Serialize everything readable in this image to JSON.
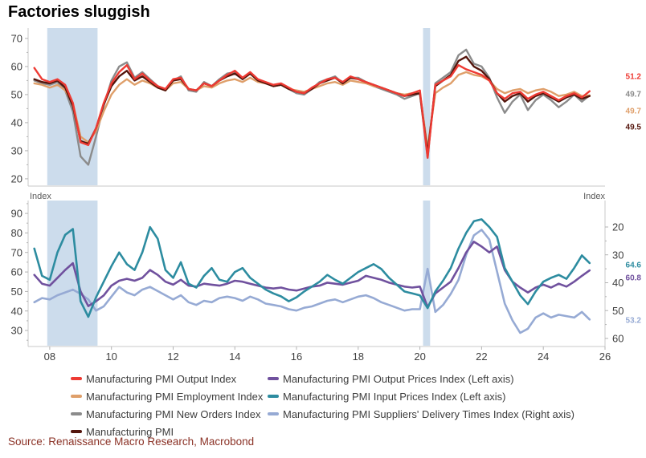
{
  "title": "Factories sluggish",
  "source": "Source: Renaissance Macro Research, Macrobond",
  "axis_unit_labels": {
    "left": "Index",
    "right": "Index"
  },
  "colors": {
    "output": "#ee3a33",
    "employment": "#df9f6a",
    "new_orders": "#8b8b8b",
    "pmi": "#54150c",
    "output_prices": "#70519e",
    "input_prices": "#2d8ca0",
    "delivery": "#96aad4",
    "recession_band": "#ccdcec",
    "axis_line": "#c9c9c9",
    "tick_mark": "#b3b3b3",
    "tick_text": "#3f3f3f",
    "legend_text": "#3d3d3d",
    "source_text": "#8b3226"
  },
  "legend": {
    "left_column": [
      {
        "label": "Manufacturing PMI Output Index",
        "color_key": "output"
      },
      {
        "label": "Manufacturing PMI Employment Index",
        "color_key": "employment"
      },
      {
        "label": "Manufacturing PMI New Orders Index",
        "color_key": "new_orders"
      },
      {
        "label": "Manufacturing PMI",
        "color_key": "pmi"
      }
    ],
    "right_column": [
      {
        "label": "Manufacturing PMI Output Prices Index (Left axis)",
        "color_key": "output_prices"
      },
      {
        "label": "Manufacturing PMI Input Prices Index (Left axis)",
        "color_key": "input_prices"
      },
      {
        "label": "Manufacturing PMI Suppliers' Delivery Times Index (Right axis)",
        "color_key": "delivery"
      }
    ]
  },
  "chart_data": [
    {
      "type": "line",
      "panel": "top",
      "x_start": 2007.5,
      "x_step": 0.25,
      "xlim": [
        2007.3,
        2026.0
      ],
      "x_tick_years": [
        2008,
        2010,
        2012,
        2014,
        2016,
        2018,
        2020,
        2022,
        2024,
        2026
      ],
      "x_tick_labels": [
        "08",
        "10",
        "12",
        "14",
        "16",
        "18",
        "20",
        "22",
        "24",
        "26"
      ],
      "show_x_labels": false,
      "ylim_left": [
        17.4,
        73.7
      ],
      "y_ticks_left": [
        20,
        30,
        40,
        50,
        60,
        70
      ],
      "recession_bands": [
        [
          2007.92,
          2009.55
        ],
        [
          2020.1,
          2020.33
        ]
      ],
      "series": [
        {
          "name": "Manufacturing PMI Output Index",
          "color_key": "output",
          "axis": "left",
          "end_label": "51.2",
          "values": [
            59.5,
            55.5,
            54.5,
            55.5,
            53.5,
            47,
            33,
            32,
            38,
            47,
            54,
            58,
            60.5,
            55.5,
            57.5,
            55,
            53,
            52,
            55.5,
            56,
            52,
            51.5,
            54,
            53,
            55,
            57,
            58.5,
            56,
            58,
            55.5,
            54.5,
            53.5,
            54,
            52.5,
            51,
            50.5,
            52.5,
            54,
            55.5,
            56,
            54.5,
            56.5,
            55.5,
            54.5,
            53.5,
            52.5,
            51.5,
            50.5,
            49.5,
            50.5,
            51.5,
            27.5,
            53.5,
            55,
            56.5,
            60.5,
            59,
            58,
            57,
            55,
            50.5,
            48.5,
            50.5,
            51,
            48.5,
            50,
            51,
            49.5,
            48,
            49.5,
            50.5,
            49,
            51.2
          ]
        },
        {
          "name": "Manufacturing PMI New Orders Index",
          "color_key": "new_orders",
          "axis": "left",
          "end_label": "49.7",
          "values": [
            55,
            54,
            53.5,
            54.5,
            51.5,
            44,
            28,
            25,
            35,
            46,
            55,
            60,
            61.5,
            56,
            58,
            55.5,
            53,
            51.5,
            55,
            56.5,
            51.5,
            51,
            54.5,
            53,
            55.5,
            57.5,
            58,
            55.5,
            57.5,
            55,
            54,
            53,
            53.5,
            52,
            50.5,
            50,
            52,
            54.5,
            55.5,
            56.5,
            54,
            56,
            56,
            54.5,
            53,
            52,
            51,
            50,
            48.5,
            49.5,
            50.5,
            27.5,
            54,
            56,
            58,
            64,
            66,
            61,
            60,
            56,
            49,
            43.5,
            47.5,
            50,
            44.5,
            48,
            50,
            48,
            45.5,
            47.5,
            50,
            47.5,
            49.7
          ]
        },
        {
          "name": "Manufacturing PMI Employment Index",
          "color_key": "employment",
          "axis": "left",
          "end_label": "49.7",
          "values": [
            54,
            53.5,
            52.5,
            53.5,
            51.5,
            47,
            35,
            33,
            37,
            44,
            50,
            53.5,
            55.5,
            53.5,
            55,
            54,
            52.5,
            51.5,
            54,
            54.5,
            52,
            51.5,
            53,
            52.5,
            54,
            55,
            55.5,
            54.5,
            56,
            54.5,
            54,
            53,
            53.5,
            52,
            51.5,
            51,
            52,
            53,
            54,
            54.5,
            53.5,
            55,
            54.5,
            54,
            53,
            52.5,
            51.5,
            50.5,
            50,
            50.5,
            50.5,
            31,
            50.5,
            52.5,
            54,
            57,
            58,
            57,
            56.5,
            55,
            52,
            50.5,
            51.5,
            52,
            50.5,
            51.5,
            52,
            51,
            49.5,
            50,
            51,
            49.5,
            49.7
          ]
        },
        {
          "name": "Manufacturing PMI",
          "color_key": "pmi",
          "axis": "left",
          "end_label": "49.5",
          "values": [
            55.5,
            54.5,
            54,
            55,
            52.5,
            46,
            33.5,
            32.5,
            38,
            46.5,
            53,
            56.5,
            58.5,
            55,
            56.5,
            54.5,
            52.5,
            51.5,
            55,
            55.5,
            52,
            51.5,
            54,
            53,
            55,
            56.5,
            57.5,
            55.5,
            57.5,
            55,
            54,
            53,
            53.5,
            52,
            51,
            50.5,
            52,
            54,
            55,
            56,
            54,
            56,
            55.5,
            54.5,
            53.5,
            52.5,
            51.5,
            50.5,
            49.5,
            50,
            50.5,
            29,
            53,
            55,
            57,
            62,
            63.5,
            60,
            58.5,
            55.5,
            50.5,
            47.5,
            49.5,
            50.5,
            47.5,
            49.5,
            50.5,
            49,
            47.5,
            49,
            50,
            48.5,
            49.5
          ]
        }
      ]
    },
    {
      "type": "line",
      "panel": "bottom",
      "x_start": 2007.5,
      "x_step": 0.25,
      "xlim": [
        2007.3,
        2026.0
      ],
      "x_tick_years": [
        2008,
        2010,
        2012,
        2014,
        2016,
        2018,
        2020,
        2022,
        2024,
        2026
      ],
      "x_tick_labels": [
        "08",
        "10",
        "12",
        "14",
        "16",
        "18",
        "20",
        "22",
        "24",
        "26"
      ],
      "show_x_labels": true,
      "ylim_left": [
        21.8,
        96.6
      ],
      "y_ticks_left": [
        30,
        40,
        50,
        60,
        70,
        80,
        90
      ],
      "ylim_right": [
        10.5,
        62.9
      ],
      "y_ticks_right": [
        20,
        30,
        40,
        50,
        60
      ],
      "right_axis_inverted": true,
      "recession_bands": [
        [
          2007.92,
          2009.55
        ],
        [
          2020.1,
          2020.33
        ]
      ],
      "series": [
        {
          "name": "Manufacturing PMI Output Prices Index (Left axis)",
          "color_key": "output_prices",
          "axis": "left",
          "end_label": "60.8",
          "values": [
            58.5,
            54,
            53,
            57,
            61,
            64.5,
            50,
            42.5,
            45,
            48,
            53,
            55.5,
            56.5,
            55.5,
            57,
            61,
            58.5,
            55,
            53.5,
            56,
            53,
            52.5,
            54,
            53.5,
            53,
            54,
            55.5,
            55,
            54,
            53,
            52,
            51.5,
            52,
            51,
            50.5,
            51.5,
            52.5,
            53,
            54.5,
            54,
            53.5,
            54.5,
            55.5,
            58,
            57,
            56,
            54.5,
            53.5,
            52.5,
            52,
            52.5,
            42,
            49,
            52,
            55,
            62,
            70,
            75.5,
            73,
            70,
            73,
            61,
            55,
            52,
            49.5,
            52,
            53.5,
            52,
            54,
            52.5,
            55,
            58,
            60.8
          ]
        },
        {
          "name": "Manufacturing PMI Input Prices Index (Left axis)",
          "color_key": "input_prices",
          "axis": "left",
          "end_label": "64.6",
          "values": [
            72,
            58,
            56,
            70,
            79,
            82,
            45,
            37,
            47,
            55,
            63,
            70,
            64,
            61,
            70,
            83,
            77,
            61,
            57,
            65,
            54,
            52,
            58,
            62,
            56,
            55,
            60,
            62,
            57,
            54,
            51,
            49,
            47.5,
            45,
            47,
            50,
            52.5,
            55,
            58.5,
            56,
            54,
            57,
            60,
            62,
            64,
            61.5,
            57,
            53.5,
            50,
            49,
            48,
            41.5,
            50,
            55.5,
            62,
            72,
            80,
            86,
            87,
            83,
            78,
            62,
            55,
            48,
            43.5,
            50,
            55,
            57,
            58.5,
            56.5,
            62,
            68.5,
            64.6
          ]
        },
        {
          "name": "Manufacturing PMI Suppliers' Delivery Times Index (Right axis)",
          "color_key": "delivery",
          "axis": "right",
          "end_label": "53.2",
          "values": [
            47,
            45.5,
            46,
            44.5,
            43.5,
            42.5,
            44,
            46,
            50,
            48.5,
            45,
            41.5,
            43.5,
            44.5,
            42.5,
            41.5,
            43,
            44.5,
            46,
            44.5,
            47,
            48,
            46.5,
            47,
            45.5,
            45,
            45.5,
            46.5,
            45,
            46,
            47.5,
            48,
            48.5,
            49.5,
            50,
            49,
            48.5,
            47.5,
            46.5,
            46,
            47,
            46,
            45,
            44.5,
            45.5,
            47,
            48,
            49,
            50,
            49.5,
            49.5,
            35,
            50.5,
            48,
            44,
            39,
            30,
            23,
            21,
            24.5,
            36,
            47.5,
            53.5,
            58,
            56.5,
            52.5,
            51,
            52.5,
            51.5,
            52,
            52.5,
            50.5,
            53.2
          ]
        }
      ]
    }
  ]
}
